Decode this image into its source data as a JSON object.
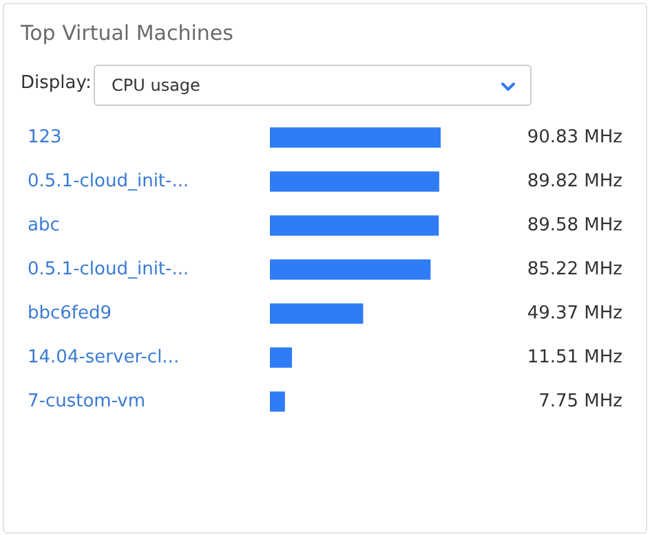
{
  "chart_data": {
    "type": "bar",
    "orientation": "horizontal",
    "title": "Top Virtual Machines",
    "annotations": [
      "Display:",
      "CPU usage"
    ],
    "categories": [
      "123",
      "0.5.1-cloud_init-...",
      "abc",
      "0.5.1-cloud_init-...",
      "bbc6fed9",
      "14.04-server-cl...",
      "7-custom-vm"
    ],
    "values": [
      90.83,
      89.82,
      89.58,
      85.22,
      49.37,
      11.51,
      7.75
    ],
    "value_labels": [
      "90.83 MHz",
      "89.82 MHz",
      "89.58 MHz",
      "85.22 MHz",
      "49.37 MHz",
      "11.51 MHz",
      "7.75 MHz"
    ],
    "color": "#2f7cf6",
    "legend": false
  }
}
